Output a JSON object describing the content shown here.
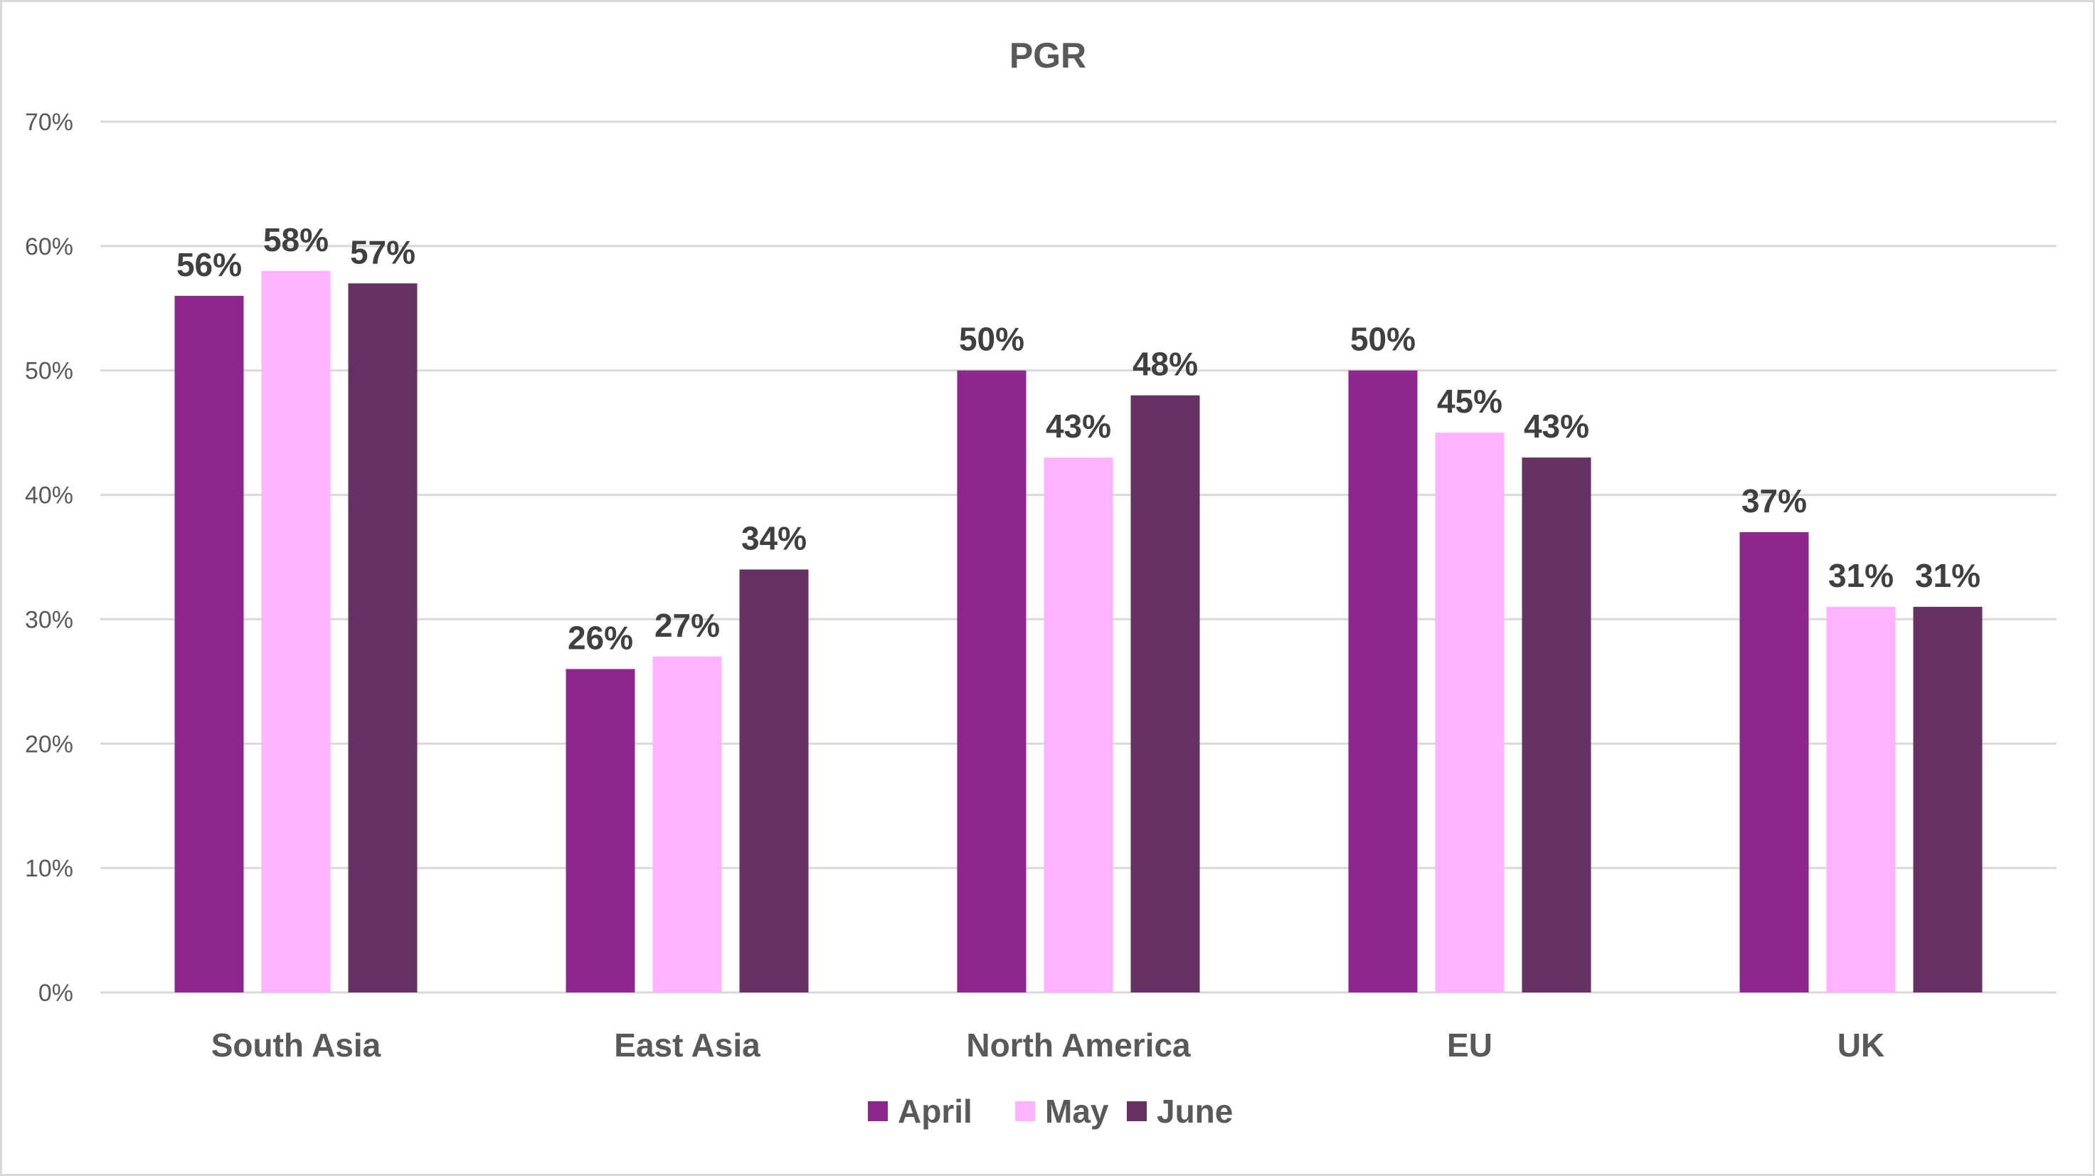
{
  "chart_data": {
    "type": "bar",
    "title": "PGR",
    "categories": [
      "South Asia",
      "East Asia",
      "North America",
      "EU",
      "UK"
    ],
    "series": [
      {
        "name": "April",
        "color": "#8e278d",
        "values": [
          0.56,
          0.26,
          0.5,
          0.5,
          0.37
        ],
        "labels": [
          "56%",
          "26%",
          "50%",
          "50%",
          "37%"
        ]
      },
      {
        "name": "May",
        "color": "#ffb3ff",
        "values": [
          0.58,
          0.27,
          0.43,
          0.45,
          0.31
        ],
        "labels": [
          "58%",
          "27%",
          "43%",
          "45%",
          "31%"
        ]
      },
      {
        "name": "June",
        "color": "#663163",
        "values": [
          0.57,
          0.34,
          0.48,
          0.43,
          0.31
        ],
        "labels": [
          "57%",
          "34%",
          "48%",
          "43%",
          "31%"
        ]
      }
    ],
    "ylim": [
      0,
      0.7
    ],
    "yticks": [
      0,
      0.1,
      0.2,
      0.3,
      0.4,
      0.5,
      0.6,
      0.7
    ],
    "ytick_labels": [
      "0%",
      "10%",
      "20%",
      "30%",
      "40%",
      "50%",
      "60%",
      "70%"
    ],
    "xlabel": "",
    "ylabel": "",
    "grid": true,
    "legend": "bottom"
  }
}
